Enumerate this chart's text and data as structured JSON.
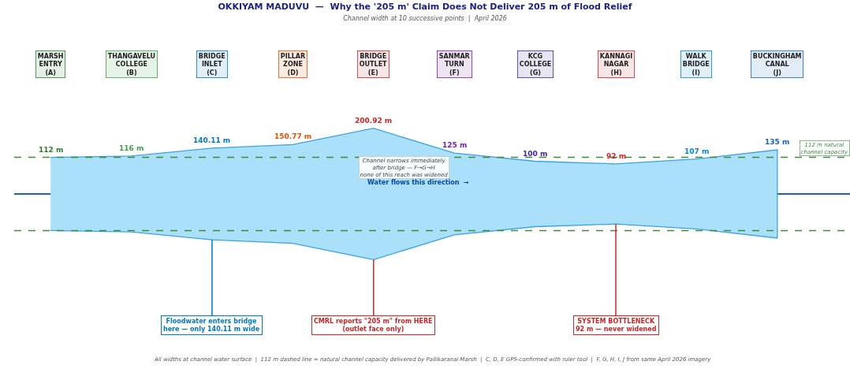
{
  "chart_data": {
    "type": "area",
    "title": "OKKIYAM MADUVU  —  Why the '205 m' Claim Does Not Deliver 205 m of Flood Relief",
    "subtitle": "Channel width at 10 successive points  |  April 2026",
    "categories": [
      "MARSH ENTRY (A)",
      "THANGAVELU COLLEGE (B)",
      "BRIDGE INLET (C)",
      "PILLAR ZONE (D)",
      "BRIDGE OUTLET (E)",
      "SANMAR TURN (F)",
      "KCG COLLEGE (G)",
      "KANNAGI NAGAR (H)",
      "WALK BRIDGE (I)",
      "BUCKINGHAM CANAL (J)"
    ],
    "values": [
      112,
      116,
      140.11,
      150.77,
      200.92,
      125,
      100,
      92,
      107,
      135
    ],
    "value_labels": [
      "112 m",
      "116 m",
      "140.11 m",
      "150.77 m",
      "200.92 m",
      "125 m",
      "100 m",
      "92 m",
      "107 m",
      "135 m"
    ],
    "colors": [
      "#2e7d32",
      "#43a047",
      "#0277bd",
      "#e65100",
      "#c62828",
      "#7b1fa2",
      "#4527a0",
      "#c62828",
      "#0288d1",
      "#1565c0"
    ],
    "color": "#aae0f9",
    "ref_lines": [
      {
        "axis": "y",
        "value": 112,
        "label": "112 m natural\nchannel capacity",
        "color": "#3d8b3d",
        "line_style": "dashed"
      }
    ],
    "annotations": [
      {
        "text": "CMRL reports \"205 m\" from HERE\n(outlet face only)",
        "x": "BRIDGE OUTLET (E)"
      },
      {
        "text": "Floodwater enters bridge\nhere — only 140.11 m wide",
        "x": "BRIDGE INLET (C)"
      },
      {
        "text": "SYSTEM BOTTLENECK\n92 m — never widened",
        "x": "KANNAGI NAGAR (H)"
      },
      "Channel narrows immediately\nafter bridge — F→G→H\nnone of this reach was widened",
      "Water flows this direction  →",
      "All widths at channel water surface  |  112 m dashed line = natural channel capacity delivered by Pallikaranai Marsh  |  C, D, E GPS-confirmed with ruler tool  |  F, G, H, I, J from same April 2026 imagery"
    ],
    "tick_labels": false
  }
}
